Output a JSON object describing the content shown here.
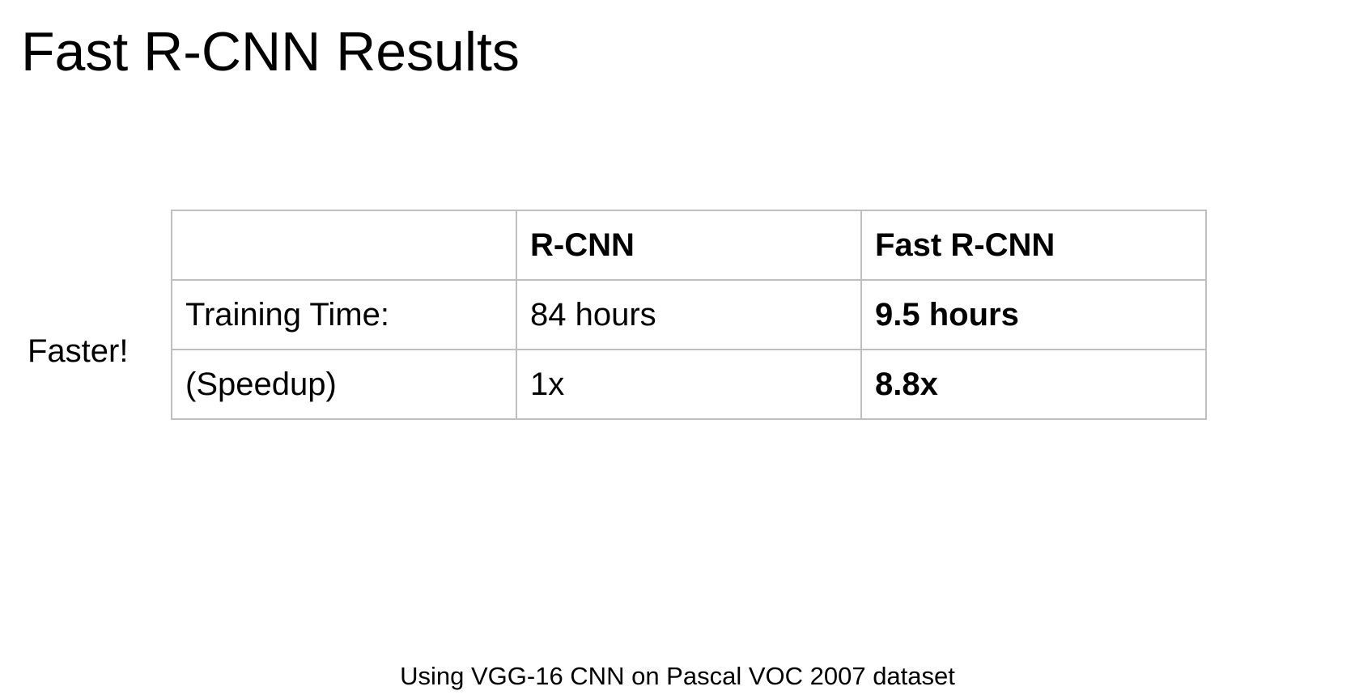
{
  "slide": {
    "title": "Fast R-CNN Results",
    "side_label": "Faster!",
    "caption": "Using VGG-16 CNN on Pascal VOC 2007 dataset"
  },
  "table": {
    "headers": [
      "",
      "R-CNN",
      "Fast R-CNN"
    ],
    "rows": [
      [
        "Training Time:",
        "84 hours",
        "9.5 hours"
      ],
      [
        "(Speedup)",
        "1x",
        "8.8x"
      ]
    ]
  }
}
